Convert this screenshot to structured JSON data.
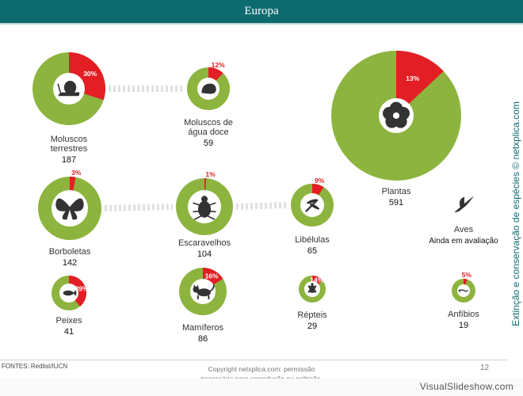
{
  "header": {
    "title": "Europa"
  },
  "chart_data": {
    "type": "pie",
    "title": "Europa",
    "unit": "%",
    "items": [
      {
        "name": "Moluscos terrestres",
        "count": "187",
        "pct": 30,
        "icon": "snail-icon"
      },
      {
        "name": "Moluscos de água doce",
        "count": "59",
        "pct": 12,
        "icon": "freshwater-mollusc-icon"
      },
      {
        "name": "Plantas",
        "count": "591",
        "pct": 13,
        "icon": "flower-icon"
      },
      {
        "name": "Borboletas",
        "count": "142",
        "pct": 3,
        "icon": "butterfly-icon"
      },
      {
        "name": "Escaravelhos",
        "count": "104",
        "pct": 1,
        "icon": "beetle-icon"
      },
      {
        "name": "Libélulas",
        "count": "65",
        "pct": 9,
        "icon": "dragonfly-icon"
      },
      {
        "name": "Aves",
        "count": "Ainda em avaliação",
        "pct": null,
        "icon": "bird-icon"
      },
      {
        "name": "Peixes",
        "count": "41",
        "pct": 39,
        "icon": "fish-icon"
      },
      {
        "name": "Mamíferos",
        "count": "86",
        "pct": 16,
        "icon": "cat-icon"
      },
      {
        "name": "Répteis",
        "count": "29",
        "pct": 14,
        "icon": "turtle-icon"
      },
      {
        "name": "Anfíbios",
        "count": "19",
        "pct": 5,
        "icon": "salamander-icon"
      }
    ],
    "colors": {
      "threatened": "#e31e24",
      "other": "#8db43e",
      "center": "#ffffff",
      "icon": "#333333",
      "connector": "#e0e0e0"
    }
  },
  "side_text": "Extinção e conservação de espécies © netxplica.com",
  "footer": {
    "sources": "FONTES: Redlist/IUCN",
    "copyright_line1": "Copyright netxplica.com: permissão",
    "copyright_line2": "necessária para reprodução ou exibição.",
    "page_number": "12"
  },
  "watermark": "VisualSlideshow.com"
}
